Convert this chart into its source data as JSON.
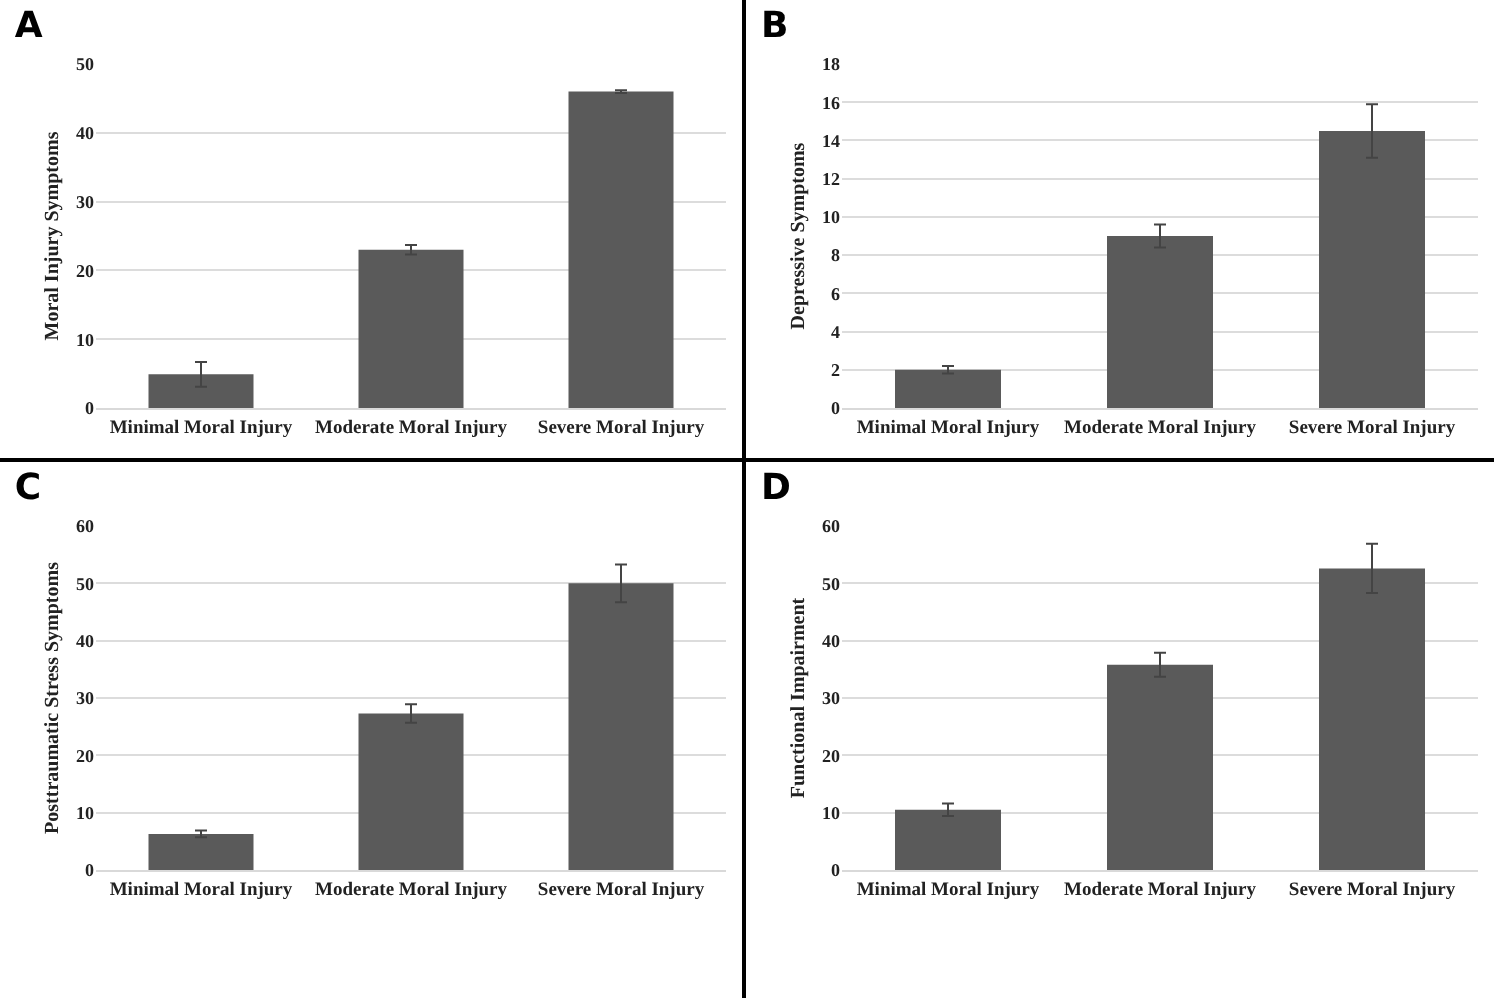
{
  "chart_data": [
    {
      "type": "bar",
      "title": "A",
      "ylabel": "Moral Injury Symptoms",
      "categories": [
        "Minimal Moral Injury",
        "Moderate Moral Injury",
        "Severe Moral Injury"
      ],
      "values": [
        4.9,
        23,
        46
      ],
      "errors": [
        1.8,
        0.7,
        0.2
      ],
      "color": "#5a5a5a",
      "ylim": [
        0,
        50
      ],
      "yticks": [
        0,
        10,
        20,
        30,
        40,
        50
      ],
      "grid": "y"
    },
    {
      "type": "bar",
      "title": "B",
      "ylabel": "Depressive Symptoms",
      "categories": [
        "Minimal Moral Injury",
        "Moderate Moral Injury",
        "Severe Moral Injury"
      ],
      "values": [
        2.0,
        9.0,
        14.5
      ],
      "errors": [
        0.2,
        0.6,
        1.4
      ],
      "color": "#5a5a5a",
      "ylim": [
        0,
        18
      ],
      "yticks": [
        0,
        2,
        4,
        6,
        8,
        10,
        12,
        14,
        16,
        18
      ],
      "grid": "y"
    },
    {
      "type": "bar",
      "title": "C",
      "ylabel": "Posttraumatic Stress Symptoms",
      "categories": [
        "Minimal Moral Injury",
        "Moderate Moral Injury",
        "Severe Moral Injury"
      ],
      "values": [
        6.3,
        27.3,
        50
      ],
      "errors": [
        0.6,
        1.6,
        3.3
      ],
      "color": "#5a5a5a",
      "ylim": [
        0,
        60
      ],
      "yticks": [
        0,
        10,
        20,
        30,
        40,
        50,
        60
      ],
      "grid": "y"
    },
    {
      "type": "bar",
      "title": "D",
      "ylabel": "Functional Impairment",
      "categories": [
        "Minimal Moral Injury",
        "Moderate Moral Injury",
        "Severe Moral Injury"
      ],
      "values": [
        10.5,
        35.8,
        52.6
      ],
      "errors": [
        1.1,
        2.1,
        4.3
      ],
      "color": "#5a5a5a",
      "ylim": [
        0,
        60
      ],
      "yticks": [
        0,
        10,
        20,
        30,
        40,
        50,
        60
      ],
      "grid": "y"
    }
  ]
}
